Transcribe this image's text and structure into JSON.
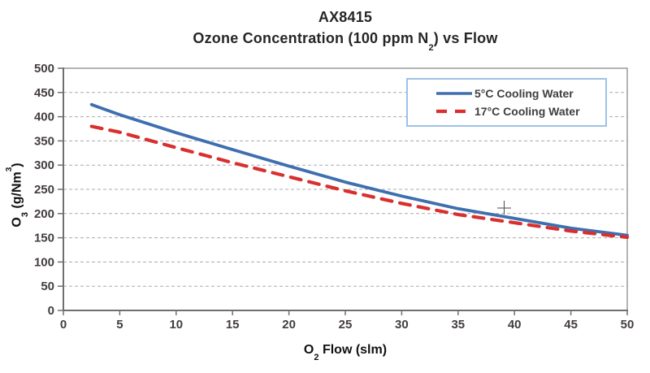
{
  "title": {
    "line1": "AX8415",
    "line2_prefix": "Ozone Concentration (100 ppm N",
    "line2_sub": "2",
    "line2_suffix": ") vs Flow"
  },
  "axes": {
    "x_title": {
      "prefix": "O",
      "sub": "2",
      "suffix": " Flow (slm)"
    },
    "y_title": {
      "prefix": "O",
      "sub": "3",
      "mid": " (g/Nm",
      "sup": "3",
      "suffix": ")"
    }
  },
  "chart_data": {
    "type": "line",
    "title": "AX8415 Ozone Concentration (100 ppm N2) vs Flow",
    "xlabel": "O2 Flow (slm)",
    "ylabel": "O3 (g/Nm3)",
    "xlim": [
      0,
      50
    ],
    "ylim": [
      0,
      500
    ],
    "xticks": [
      0,
      5,
      10,
      15,
      20,
      25,
      30,
      35,
      40,
      45,
      50
    ],
    "yticks": [
      0,
      50,
      100,
      150,
      200,
      250,
      300,
      350,
      400,
      450,
      500
    ],
    "grid": "horizontal dashed",
    "legend_position": "top-right",
    "series": [
      {
        "name": "5°C Cooling Water",
        "color": "#3e6fae",
        "style": "solid",
        "x": [
          2.5,
          5,
          10,
          15,
          20,
          25,
          30,
          35,
          40,
          45,
          50
        ],
        "y": [
          425,
          404,
          367,
          332,
          298,
          265,
          236,
          210,
          190,
          170,
          155
        ]
      },
      {
        "name": "17°C Cooling Water",
        "color": "#d92f2f",
        "style": "dashed",
        "x": [
          2.5,
          5,
          10,
          15,
          20,
          25,
          30,
          35,
          40,
          45,
          50
        ],
        "y": [
          380,
          368,
          336,
          305,
          276,
          247,
          221,
          198,
          181,
          164,
          151
        ]
      }
    ]
  },
  "colors": {
    "background": "#ffffff",
    "plot_border": "#8c8c8c",
    "axis_line": "#6f6f6f",
    "gridline": "#ababab",
    "tick_label": "#433e3d",
    "title_text": "#262626",
    "legend_border": "#9cc2e5",
    "legend_text": "#3f3f3f",
    "crosshair": "#4a4a4a"
  }
}
